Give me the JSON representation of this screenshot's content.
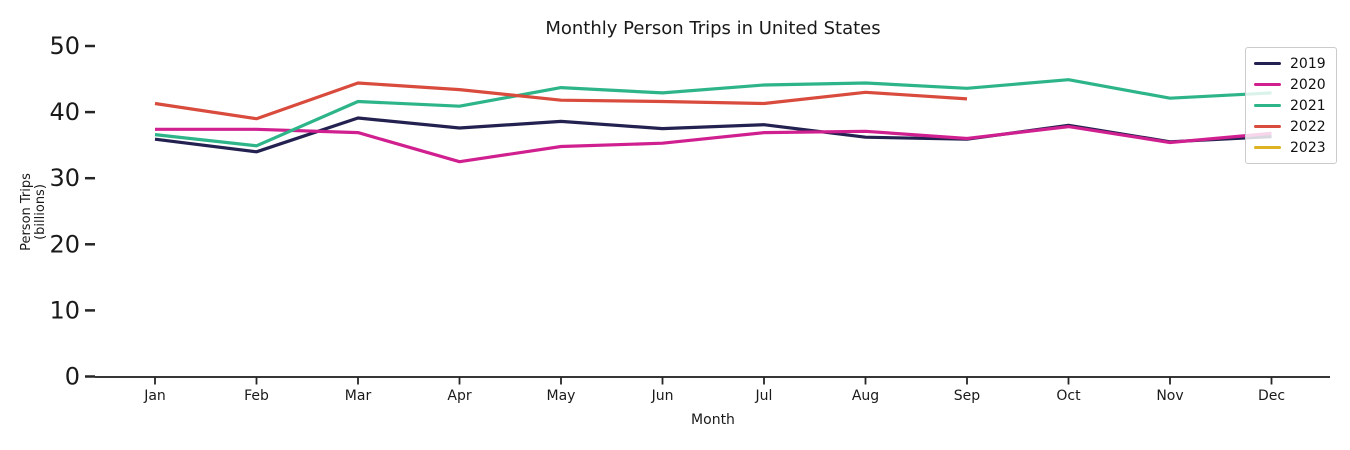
{
  "title": "Monthly Person Trips in United States",
  "axes": {
    "xlabel": "Month",
    "ylabel_lines": [
      "Person Trips",
      "(billions)"
    ],
    "yticks": [
      0,
      10,
      20,
      30,
      40,
      50
    ],
    "months": [
      "Jan",
      "Feb",
      "Mar",
      "Apr",
      "May",
      "Jun",
      "Jul",
      "Aug",
      "Sep",
      "Oct",
      "Nov",
      "Dec"
    ]
  },
  "chart_data": {
    "type": "line",
    "title": "Monthly Person Trips in United States",
    "xlabel": "Month",
    "ylabel": "Person Trips (billions)",
    "categories": [
      "Jan",
      "Feb",
      "Mar",
      "Apr",
      "May",
      "Jun",
      "Jul",
      "Aug",
      "Sep",
      "Oct",
      "Nov",
      "Dec"
    ],
    "ylim": [
      0,
      52
    ],
    "grid": false,
    "legend_position": "upper right",
    "series": [
      {
        "name": "2019",
        "color": "#232150",
        "values": [
          35.9,
          34.0,
          39.1,
          37.6,
          38.6,
          37.5,
          38.1,
          36.2,
          35.9,
          38.0,
          35.5,
          36.3
        ]
      },
      {
        "name": "2020",
        "color": "#d02090",
        "values": [
          37.4,
          37.4,
          36.9,
          32.5,
          34.8,
          35.3,
          36.9,
          37.1,
          36.0,
          37.8,
          35.4,
          36.8
        ]
      },
      {
        "name": "2021",
        "color": "#2db589",
        "values": [
          36.6,
          34.9,
          41.6,
          40.9,
          43.7,
          42.9,
          44.1,
          44.4,
          43.6,
          44.9,
          42.1,
          42.9
        ]
      },
      {
        "name": "2022",
        "color": "#d94b3d",
        "values": [
          41.3,
          39.0,
          44.4,
          43.4,
          41.8,
          41.6,
          41.3,
          43.0,
          42.0,
          null,
          null,
          null
        ]
      },
      {
        "name": "2023",
        "color": "#ddb321",
        "values": [
          null,
          null,
          null,
          null,
          null,
          null,
          null,
          null,
          null,
          null,
          null,
          null
        ]
      }
    ]
  }
}
